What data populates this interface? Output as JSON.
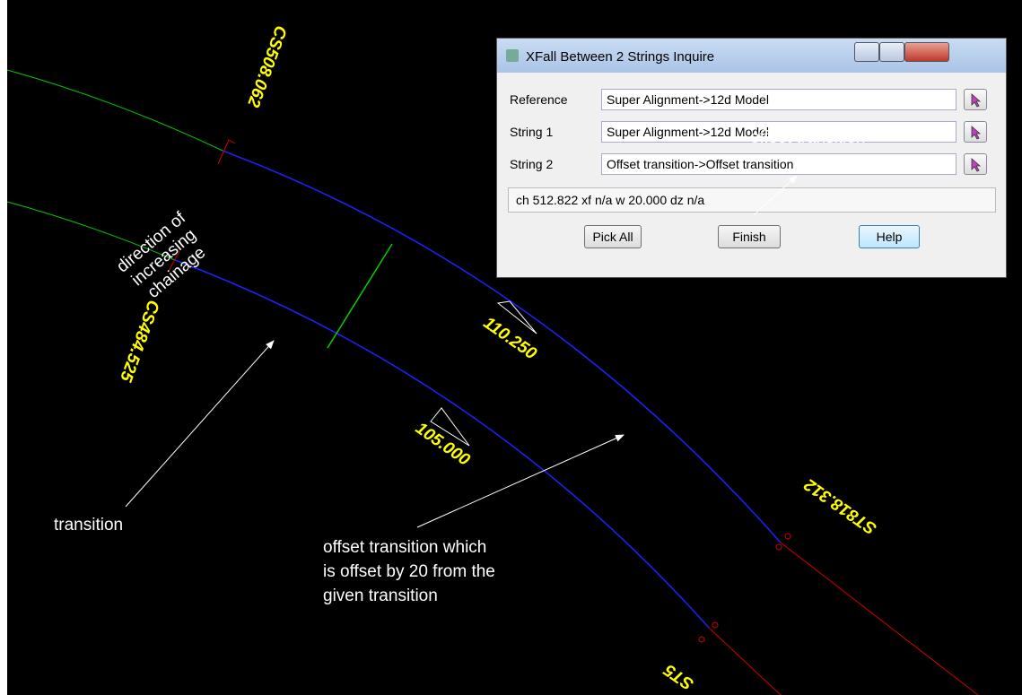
{
  "canvas": {
    "labels": {
      "cs508": "CS508.062",
      "cs484": "CS484.525",
      "ch110": "110.250",
      "ch105": "105.000",
      "st818": "ST818.312",
      "st5": "ST5"
    },
    "annotations": {
      "direction": [
        "direction of",
        "increasing",
        "chainage"
      ],
      "transition": "transition",
      "offset": [
        "offset transition which",
        "is offset by 20 from the",
        "given transition"
      ],
      "offset_overlay": "offset transition"
    }
  },
  "dialog": {
    "title": "XFall Between 2 Strings Inquire",
    "fields": [
      {
        "label": "Reference",
        "value": "Super Alignment->12d Model"
      },
      {
        "label": "String 1",
        "value": "Super Alignment->12d Model"
      },
      {
        "label": "String 2",
        "value": "Offset transition->Offset transition"
      }
    ],
    "status": "ch 512.822 xf n/a w 20.000 dz n/a",
    "buttons": [
      "Pick All",
      "Finish",
      "Help"
    ]
  }
}
